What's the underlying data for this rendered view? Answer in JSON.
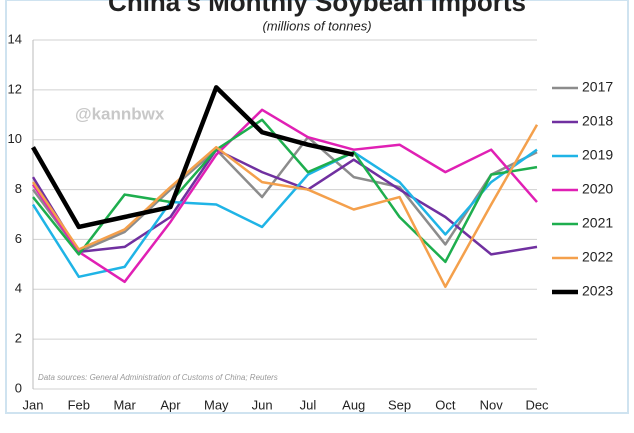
{
  "chart_data": {
    "type": "line",
    "title": "China's Monthly Soybean Imports",
    "subtitle": "(millions of tonnes)",
    "annotations": [
      "@kannbwx",
      "Data sources: General Administration of Customs of China; Reuters"
    ],
    "categories": [
      "Jan",
      "Feb",
      "Mar",
      "Apr",
      "May",
      "Jun",
      "Jul",
      "Aug",
      "Sep",
      "Oct",
      "Nov",
      "Dec"
    ],
    "series": [
      {
        "name": "2017",
        "color": "#8c8c8c",
        "values": [
          8.0,
          5.5,
          6.3,
          8.0,
          9.6,
          7.7,
          10.1,
          8.5,
          8.1,
          5.8,
          8.6,
          9.5
        ]
      },
      {
        "name": "2018",
        "color": "#7030a0",
        "values": [
          8.5,
          5.5,
          5.7,
          6.9,
          9.6,
          8.7,
          8.0,
          9.2,
          8.0,
          6.9,
          5.4,
          5.7
        ]
      },
      {
        "name": "2019",
        "color": "#1fb4e6",
        "values": [
          7.4,
          4.5,
          4.9,
          7.5,
          7.4,
          6.5,
          8.6,
          9.5,
          8.3,
          6.2,
          8.3,
          9.6
        ]
      },
      {
        "name": "2020",
        "color": "#e020b4",
        "values": [
          8.2,
          5.5,
          4.3,
          6.7,
          9.4,
          11.2,
          10.1,
          9.6,
          9.8,
          8.7,
          9.6,
          7.5
        ]
      },
      {
        "name": "2021",
        "color": "#1eae4e",
        "values": [
          7.7,
          5.4,
          7.8,
          7.5,
          9.6,
          10.8,
          8.7,
          9.5,
          6.9,
          5.1,
          8.6,
          8.9
        ]
      },
      {
        "name": "2022",
        "color": "#f4a04c",
        "values": [
          8.3,
          5.6,
          6.4,
          8.1,
          9.7,
          8.3,
          8.0,
          7.2,
          7.7,
          4.1,
          7.4,
          10.6
        ]
      },
      {
        "name": "2023",
        "color": "#000000",
        "values": [
          9.7,
          6.5,
          6.9,
          7.3,
          12.1,
          10.3,
          9.8,
          9.4,
          null,
          null,
          null,
          null
        ]
      }
    ],
    "ylim": [
      0,
      14
    ],
    "yticks": [
      0,
      2,
      4,
      6,
      8,
      10,
      12,
      14
    ],
    "grid": true,
    "legend": "right"
  }
}
